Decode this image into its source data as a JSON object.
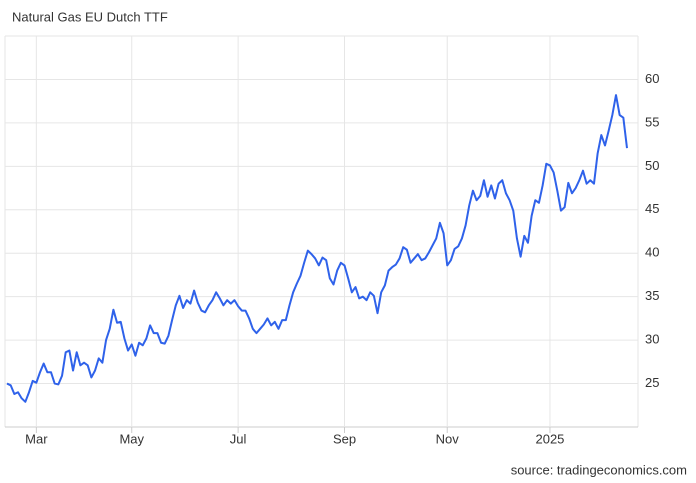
{
  "chart_data": {
    "type": "line",
    "title": "Natural Gas EU Dutch TTF",
    "source": "source: tradingeconomics.com",
    "categories": [
      null,
      null,
      null,
      null,
      null,
      null,
      null,
      null,
      "Mar",
      null,
      null,
      null,
      null,
      null,
      null,
      null,
      null,
      null,
      null,
      null,
      null,
      null,
      null,
      null,
      null,
      null,
      null,
      null,
      null,
      null,
      null,
      null,
      null,
      null,
      "May",
      null,
      null,
      null,
      null,
      null,
      null,
      null,
      null,
      null,
      null,
      null,
      null,
      null,
      null,
      null,
      null,
      null,
      null,
      null,
      null,
      null,
      null,
      null,
      null,
      null,
      null,
      null,
      null,
      "Jul",
      null,
      null,
      null,
      null,
      null,
      null,
      null,
      null,
      null,
      null,
      null,
      null,
      null,
      null,
      null,
      null,
      null,
      null,
      null,
      null,
      null,
      null,
      null,
      null,
      null,
      null,
      null,
      null,
      "Sep",
      null,
      null,
      null,
      null,
      null,
      null,
      null,
      null,
      null,
      null,
      null,
      null,
      null,
      null,
      null,
      null,
      null,
      null,
      null,
      null,
      null,
      null,
      null,
      null,
      null,
      null,
      null,
      "Nov",
      null,
      null,
      null,
      null,
      null,
      null,
      null,
      null,
      null,
      null,
      null,
      null,
      null,
      null,
      null,
      null,
      null,
      null,
      null,
      null,
      null,
      null,
      null,
      null,
      null,
      null,
      null,
      "2025",
      null,
      null,
      null,
      null,
      null,
      null,
      null,
      null,
      null,
      null,
      null,
      null,
      null,
      null,
      null,
      null,
      null,
      null,
      null,
      null,
      null
    ],
    "values": [
      25.0,
      24.8,
      23.8,
      24.0,
      23.3,
      22.9,
      24.0,
      25.3,
      25.1,
      26.3,
      27.3,
      26.3,
      26.3,
      25.0,
      24.9,
      25.9,
      28.6,
      28.8,
      26.5,
      28.6,
      27.1,
      27.4,
      27.1,
      25.7,
      26.5,
      27.9,
      27.4,
      30.0,
      31.3,
      33.5,
      32.0,
      32.1,
      30.2,
      28.8,
      29.5,
      28.2,
      29.7,
      29.4,
      30.2,
      31.7,
      30.8,
      30.8,
      29.7,
      29.6,
      30.5,
      32.3,
      34.0,
      35.1,
      33.7,
      34.6,
      34.2,
      35.7,
      34.3,
      33.4,
      33.2,
      34.0,
      34.6,
      35.5,
      34.8,
      34.0,
      34.6,
      34.2,
      34.6,
      33.9,
      33.4,
      33.4,
      32.5,
      31.3,
      30.8,
      31.3,
      31.8,
      32.5,
      31.7,
      32.1,
      31.3,
      32.3,
      32.3,
      34.0,
      35.5,
      36.5,
      37.4,
      38.9,
      40.3,
      39.9,
      39.4,
      38.6,
      39.5,
      39.2,
      37.1,
      36.4,
      38.0,
      38.9,
      38.6,
      37.1,
      35.5,
      36.1,
      34.8,
      35.0,
      34.6,
      35.5,
      35.1,
      33.1,
      35.5,
      36.3,
      38.0,
      38.4,
      38.7,
      39.4,
      40.7,
      40.4,
      38.9,
      39.4,
      39.9,
      39.2,
      39.4,
      40.1,
      40.9,
      41.7,
      43.5,
      42.3,
      38.6,
      39.2,
      40.5,
      40.8,
      41.7,
      43.2,
      45.5,
      47.2,
      46.1,
      46.6,
      48.4,
      46.5,
      47.8,
      46.3,
      48.0,
      48.4,
      46.9,
      46.1,
      44.9,
      41.7,
      39.6,
      42.0,
      41.2,
      44.3,
      46.1,
      45.8,
      47.8,
      50.3,
      50.1,
      49.3,
      47.2,
      44.9,
      45.3,
      48.1,
      46.9,
      47.5,
      48.4,
      49.5,
      48.0,
      48.4,
      48.0,
      51.5,
      53.6,
      52.4,
      54.1,
      55.9,
      58.2,
      55.9,
      55.6,
      52.1
    ],
    "color": "#2f62ea",
    "ylim": [
      20,
      65
    ],
    "yticks": [
      25,
      30,
      35,
      40,
      45,
      50,
      55,
      60
    ],
    "grid": true
  }
}
